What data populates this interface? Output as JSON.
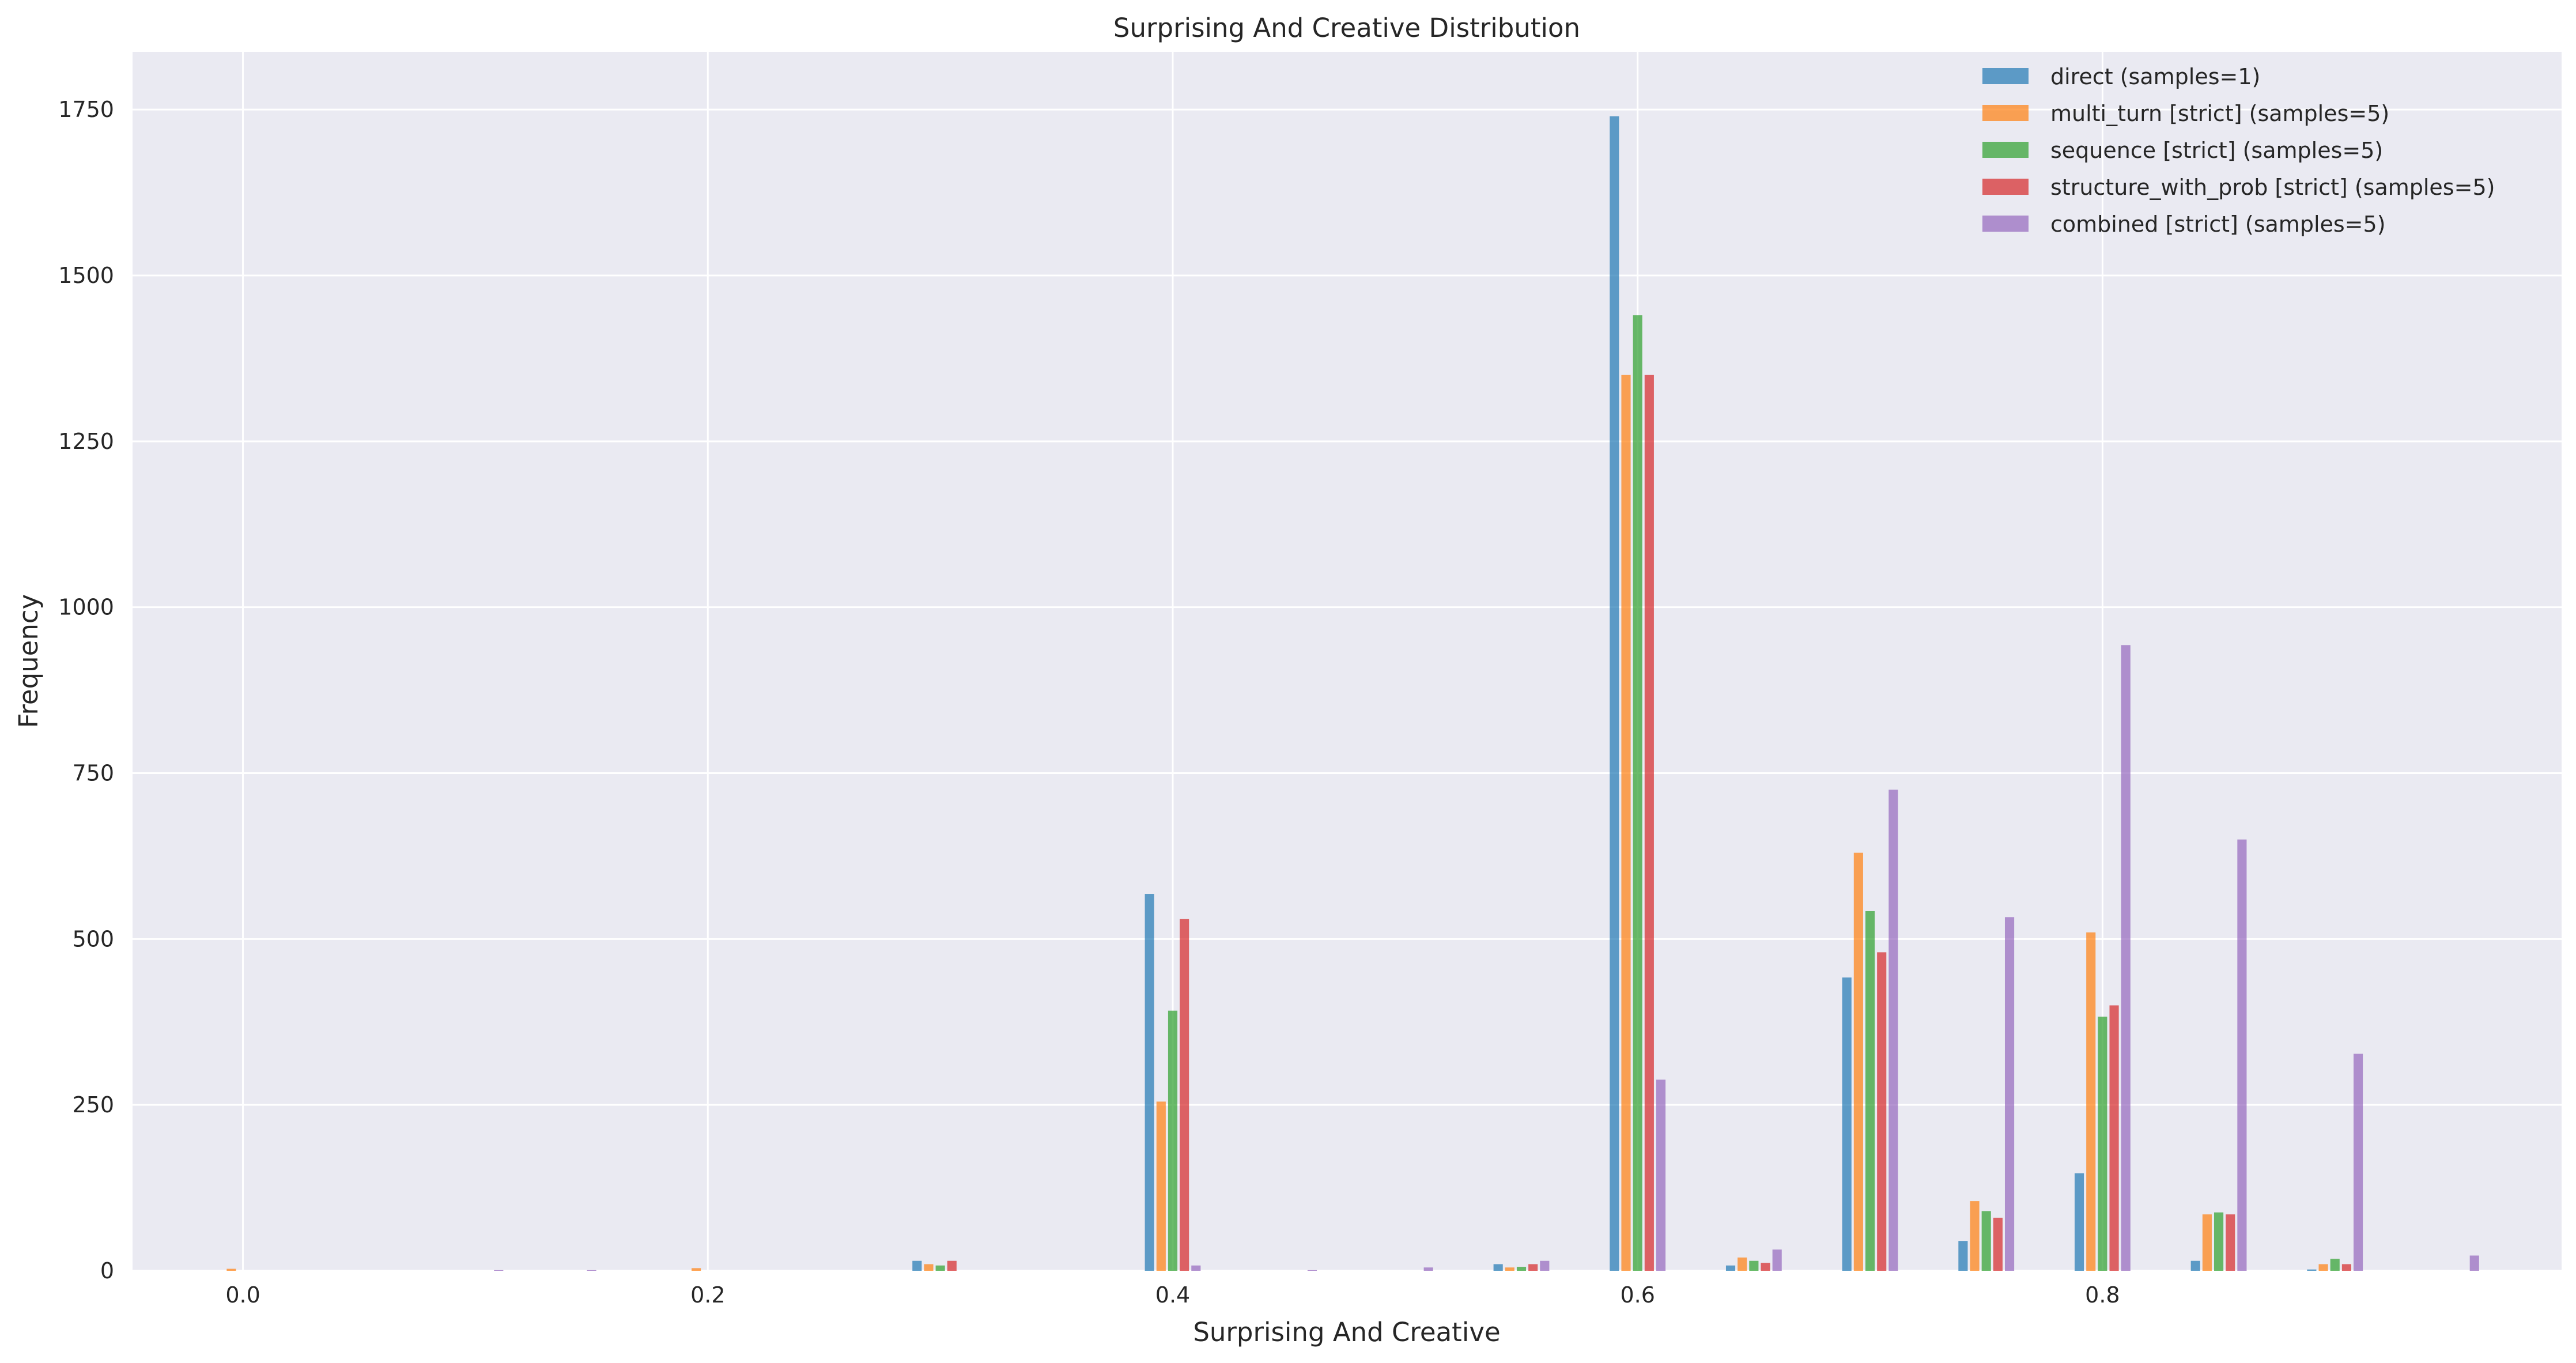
{
  "chart_data": {
    "type": "bar",
    "title": "Surprising And Creative Distribution",
    "xlabel": "Surprising And Creative",
    "ylabel": "Frequency",
    "xlim": [
      -0.0475,
      0.9975
    ],
    "ylim": [
      0,
      1837
    ],
    "xticks": [
      0.0,
      0.2,
      0.4,
      0.6,
      0.8
    ],
    "xtick_labels": [
      "0.0",
      "0.2",
      "0.4",
      "0.6",
      "0.8"
    ],
    "yticks": [
      0,
      250,
      500,
      750,
      1000,
      1250,
      1500,
      1750
    ],
    "ytick_labels": [
      "0",
      "250",
      "500",
      "750",
      "1000",
      "1250",
      "1500",
      "1750"
    ],
    "grid": true,
    "legend_position": "top-right",
    "bin_centers": [
      0.0,
      0.1,
      0.14,
      0.2,
      0.3,
      0.4,
      0.45,
      0.5,
      0.55,
      0.6,
      0.65,
      0.7,
      0.75,
      0.8,
      0.85,
      0.9,
      0.95
    ],
    "series": [
      {
        "name": "direct (samples=1)",
        "color": "#1f77b4",
        "values": [
          0,
          0,
          0,
          0,
          15,
          568,
          0,
          0,
          10,
          1740,
          8,
          442,
          45,
          147,
          15,
          2,
          0
        ]
      },
      {
        "name": "multi_turn [strict] (samples=5)",
        "color": "#ff7f0e",
        "values": [
          3,
          0,
          0,
          4,
          10,
          255,
          0,
          0,
          5,
          1350,
          20,
          630,
          105,
          510,
          85,
          10,
          0
        ]
      },
      {
        "name": "sequence [strict] (samples=5)",
        "color": "#2ca02c",
        "values": [
          0,
          0,
          0,
          0,
          8,
          392,
          0,
          0,
          6,
          1440,
          15,
          542,
          90,
          383,
          88,
          18,
          0
        ]
      },
      {
        "name": "structure_with_prob [strict] (samples=5)",
        "color": "#d62728",
        "values": [
          0,
          0,
          0,
          0,
          15,
          530,
          0,
          0,
          10,
          1350,
          12,
          480,
          80,
          400,
          85,
          10,
          0
        ]
      },
      {
        "name": "combined [strict] (samples=5)",
        "color": "#9467bd",
        "values": [
          0,
          1,
          1,
          0,
          0,
          8,
          1,
          5,
          15,
          288,
          32,
          725,
          533,
          943,
          650,
          327,
          23
        ]
      }
    ]
  }
}
